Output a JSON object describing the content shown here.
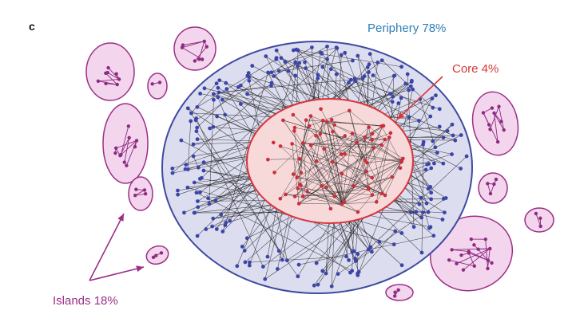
{
  "panel": {
    "letter": "c"
  },
  "labels": {
    "periphery": "Periphery 78%",
    "core": "Core 4%",
    "islands": "Islands 18%"
  },
  "colors": {
    "periphery_fill": "#dcddef",
    "periphery_stroke": "#3e4aa0",
    "periphery_node": "#3b45a8",
    "periphery_text": "#2f7fb6",
    "core_fill": "#f7d9da",
    "core_stroke": "#d9343c",
    "core_node": "#cc2d3a",
    "core_text": "#d43a3a",
    "island_fill": "#f3d5ee",
    "island_stroke": "#9b2f86",
    "island_node": "#8e2a80",
    "island_text": "#9b2f86",
    "edge": "#222222"
  }
}
